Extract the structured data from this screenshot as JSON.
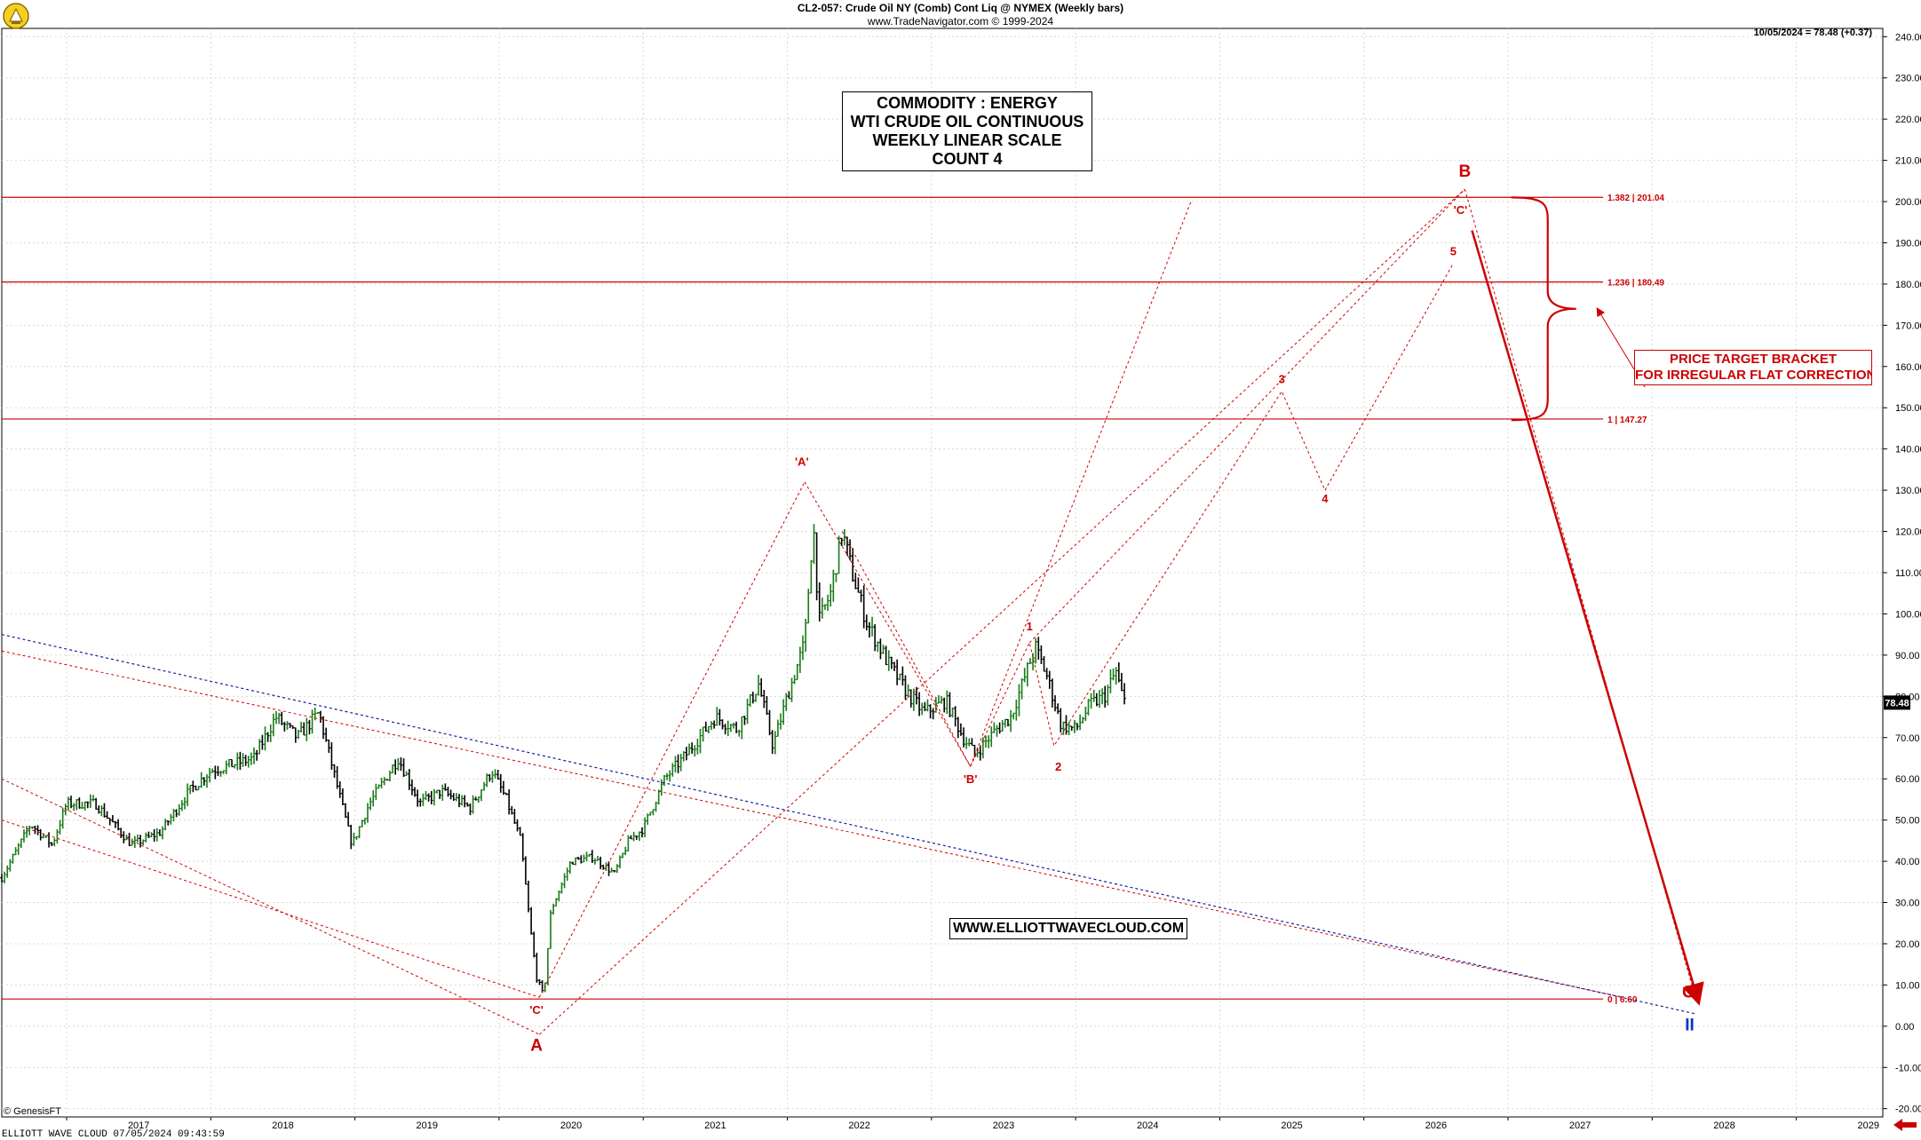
{
  "header": {
    "title": "CL2-057:  Crude Oil NY (Comb) Cont Liq @ NYMEX  (Weekly bars)",
    "copyright": "www.TradeNavigator.com © 1999-2024",
    "last_price_note": "10/05/2024 = 78.48 (+0.37)"
  },
  "title_box": {
    "line1": "COMMODITY : ENERGY",
    "line2": "WTI CRUDE OIL CONTINUOUS",
    "line3": "WEEKLY LINEAR SCALE",
    "line4": "COUNT 4"
  },
  "website": "WWW.ELLIOTTWAVECLOUD.COM",
  "bracket_label": {
    "line1": "PRICE TARGET BRACKET",
    "line2": "FOR IRREGULAR FLAT CORRECTION"
  },
  "footer": {
    "genesis": "© GenesisFT",
    "left": "ELLIOTT WAVE CLOUD   07/05/2024 09:43:59"
  },
  "colors": {
    "price_up": "#1a7a1a",
    "price_down": "#000000",
    "wave_red": "#cc0000",
    "trend_blue": "#1a1aa0",
    "wave_blue": "#0033cc",
    "grid": "#d8d8d8"
  },
  "chart_data": {
    "type": "line",
    "title": "CL2-057:  Crude Oil NY (Comb) Cont Liq @ NYMEX  (Weekly bars)",
    "xlabel": "",
    "ylabel": "",
    "x_range": [
      2016.55,
      2029.6
    ],
    "ylim": [
      -22,
      242
    ],
    "y_ticks": [
      -20,
      -10,
      0,
      10,
      20,
      30,
      40,
      50,
      60,
      70,
      80,
      90,
      100,
      110,
      120,
      130,
      140,
      150,
      160,
      170,
      180,
      190,
      200,
      210,
      220,
      230,
      240
    ],
    "y_tick_labels": [
      "-20.00",
      "-10.00",
      "0.00",
      "10.00",
      "20.00",
      "30.00",
      "40.00",
      "50.00",
      "60.00",
      "70.00",
      "80.00",
      "90.00",
      "100.00",
      "110.00",
      "120.00",
      "130.00",
      "140.00",
      "150.00",
      "160.00",
      "170.00",
      "180.00",
      "190.00",
      "200.00",
      "210.00",
      "220.00",
      "230.00",
      "240.00"
    ],
    "x_ticks": [
      2017,
      2018,
      2019,
      2020,
      2021,
      2022,
      2023,
      2024,
      2025,
      2026,
      2027,
      2028,
      2029
    ],
    "x_tick_labels": [
      "2017",
      "2018",
      "2019",
      "2020",
      "2021",
      "2022",
      "2023",
      "2024",
      "2025",
      "2026",
      "2027",
      "2028",
      "2029"
    ],
    "grid": true,
    "last_price_label": "78.48",
    "price_path": [
      [
        2016.55,
        36
      ],
      [
        2016.75,
        49
      ],
      [
        2016.9,
        44
      ],
      [
        2017.0,
        54
      ],
      [
        2017.2,
        54
      ],
      [
        2017.45,
        44
      ],
      [
        2017.65,
        47
      ],
      [
        2017.85,
        57
      ],
      [
        2018.0,
        62
      ],
      [
        2018.3,
        65
      ],
      [
        2018.45,
        75
      ],
      [
        2018.6,
        70
      ],
      [
        2018.75,
        76
      ],
      [
        2018.9,
        55
      ],
      [
        2018.98,
        44
      ],
      [
        2019.1,
        54
      ],
      [
        2019.3,
        65
      ],
      [
        2019.45,
        54
      ],
      [
        2019.6,
        57
      ],
      [
        2019.8,
        53
      ],
      [
        2019.95,
        62
      ],
      [
        2020.05,
        55
      ],
      [
        2020.15,
        45
      ],
      [
        2020.22,
        23
      ],
      [
        2020.26,
        12
      ],
      [
        2020.31,
        7
      ],
      [
        2020.36,
        28
      ],
      [
        2020.5,
        40
      ],
      [
        2020.65,
        41
      ],
      [
        2020.8,
        37
      ],
      [
        2020.9,
        45
      ],
      [
        2021.0,
        48
      ],
      [
        2021.15,
        60
      ],
      [
        2021.3,
        66
      ],
      [
        2021.5,
        75
      ],
      [
        2021.65,
        72
      ],
      [
        2021.8,
        83
      ],
      [
        2021.9,
        68
      ],
      [
        2022.0,
        80
      ],
      [
        2022.12,
        93
      ],
      [
        2022.18,
        122
      ],
      [
        2022.22,
        98
      ],
      [
        2022.3,
        105
      ],
      [
        2022.38,
        120
      ],
      [
        2022.45,
        110
      ],
      [
        2022.55,
        98
      ],
      [
        2022.7,
        88
      ],
      [
        2022.85,
        80
      ],
      [
        2022.95,
        76
      ],
      [
        2023.1,
        79
      ],
      [
        2023.22,
        70
      ],
      [
        2023.3,
        66
      ],
      [
        2023.45,
        72
      ],
      [
        2023.55,
        75
      ],
      [
        2023.65,
        85
      ],
      [
        2023.72,
        92
      ],
      [
        2023.8,
        85
      ],
      [
        2023.9,
        73
      ],
      [
        2024.0,
        72
      ],
      [
        2024.1,
        78
      ],
      [
        2024.2,
        80
      ],
      [
        2024.28,
        86
      ],
      [
        2024.33,
        79
      ],
      [
        2024.35,
        78.48
      ]
    ],
    "horizontal_levels": [
      {
        "y": 201.04,
        "label": "1.382 | 201.04"
      },
      {
        "y": 180.49,
        "label": "1.236 | 180.49"
      },
      {
        "y": 147.27,
        "label": "1 | 147.27"
      },
      {
        "y": 6.6,
        "label": "0 | 6.60"
      }
    ],
    "wave_labels": [
      {
        "text": "'A'",
        "x": 2022.1,
        "y": 136,
        "color": "#cc0000",
        "size": "small"
      },
      {
        "text": "'B'",
        "x": 2023.27,
        "y": 59,
        "color": "#cc0000",
        "size": "small"
      },
      {
        "text": "'C'",
        "x": 2020.26,
        "y": 3,
        "color": "#cc0000",
        "size": "small"
      },
      {
        "text": "A",
        "x": 2020.26,
        "y": -6,
        "color": "#cc0000",
        "size": "large"
      },
      {
        "text": "1",
        "x": 2023.68,
        "y": 96,
        "color": "#cc0000",
        "size": "small"
      },
      {
        "text": "2",
        "x": 2023.88,
        "y": 62,
        "color": "#cc0000",
        "size": "small"
      },
      {
        "text": "3",
        "x": 2025.43,
        "y": 156,
        "color": "#cc0000",
        "size": "small"
      },
      {
        "text": "4",
        "x": 2025.73,
        "y": 127,
        "color": "#cc0000",
        "size": "small"
      },
      {
        "text": "5",
        "x": 2026.62,
        "y": 187,
        "color": "#cc0000",
        "size": "small"
      },
      {
        "text": "'C'",
        "x": 2026.67,
        "y": 197,
        "color": "#cc0000",
        "size": "small"
      },
      {
        "text": "B",
        "x": 2026.7,
        "y": 206,
        "color": "#cc0000",
        "size": "large"
      },
      {
        "text": "C",
        "x": 2028.25,
        "y": 7,
        "color": "#cc0000",
        "size": "large"
      },
      {
        "text": "II",
        "x": 2028.26,
        "y": -1,
        "color": "#0033cc",
        "size": "large"
      }
    ],
    "wave_paths": [
      {
        "style": "dotted-red",
        "points": [
          [
            2022.12,
            132
          ],
          [
            2023.27,
            63
          ],
          [
            2024.8,
            200
          ]
        ]
      },
      {
        "style": "dotted-red",
        "points": [
          [
            2020.28,
            7
          ],
          [
            2022.12,
            132
          ]
        ]
      },
      {
        "style": "dotted-red",
        "points": [
          [
            2022.38,
            120
          ],
          [
            2023.27,
            63
          ]
        ]
      },
      {
        "style": "dotted-red",
        "points": [
          [
            2023.27,
            63
          ],
          [
            2023.68,
            93
          ],
          [
            2023.85,
            68
          ],
          [
            2025.43,
            154
          ],
          [
            2025.73,
            130
          ],
          [
            2026.62,
            185
          ]
        ]
      },
      {
        "style": "dotted-red",
        "points": [
          [
            2023.68,
            93
          ],
          [
            2026.7,
            203
          ]
        ]
      },
      {
        "style": "dotted-red",
        "points": [
          [
            2020.28,
            -2
          ],
          [
            2026.7,
            203
          ]
        ]
      },
      {
        "style": "dotted-red",
        "points": [
          [
            2026.7,
            203
          ],
          [
            2028.3,
            7
          ]
        ]
      },
      {
        "style": "dotted-red",
        "points": [
          [
            2016.55,
            60
          ],
          [
            2020.28,
            -2
          ]
        ]
      },
      {
        "style": "dotted-red",
        "points": [
          [
            2016.55,
            50
          ],
          [
            2020.28,
            7
          ]
        ]
      },
      {
        "style": "dotted-red",
        "points": [
          [
            2016.55,
            91
          ],
          [
            2027.8,
            7
          ]
        ]
      },
      {
        "style": "dotted-blue",
        "points": [
          [
            2016.55,
            95
          ],
          [
            2028.3,
            3
          ]
        ]
      },
      {
        "style": "solid-red-arrow",
        "points": [
          [
            2026.75,
            193
          ],
          [
            2028.32,
            6
          ]
        ]
      },
      {
        "style": "curly-bracket",
        "points": [
          [
            2027.3,
            201
          ],
          [
            2027.3,
            147
          ]
        ]
      },
      {
        "style": "solid-red-arrow-thin",
        "points": [
          [
            2027.95,
            155
          ],
          [
            2027.62,
            174
          ]
        ]
      }
    ]
  }
}
